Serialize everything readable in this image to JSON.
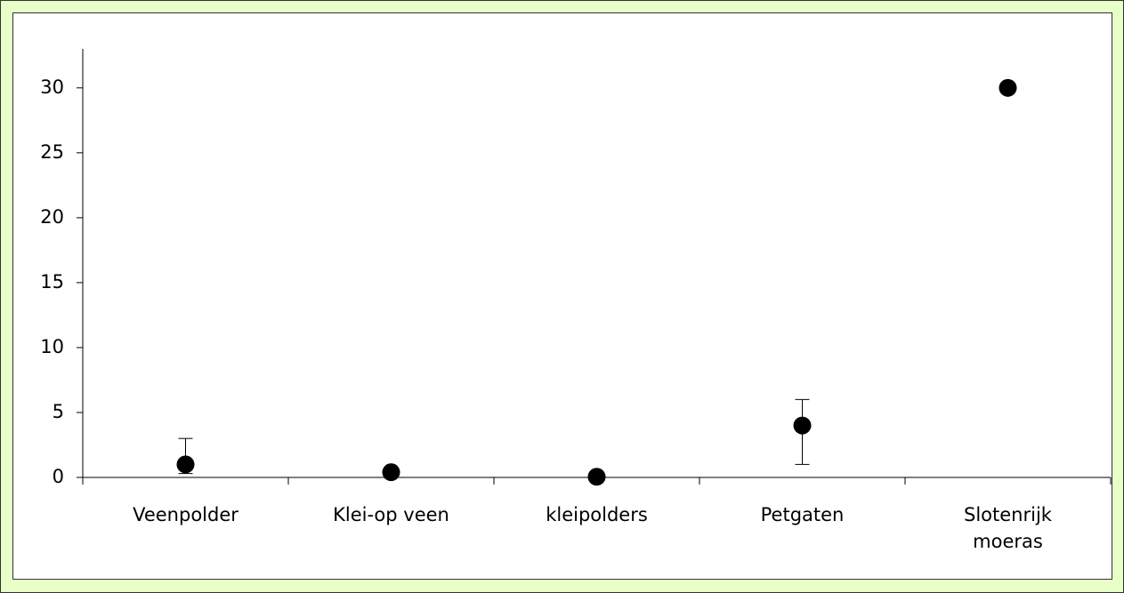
{
  "chart_data": {
    "type": "dot",
    "categories": [
      "Veenpolder",
      "Klei-op veen",
      "kleipolders",
      "Petgaten",
      "Slotenrijk\nmoeras"
    ],
    "values": [
      1,
      0.4,
      0.05,
      4,
      30
    ],
    "errors_plus": [
      2,
      null,
      null,
      2,
      null
    ],
    "errors_minus": [
      0.7,
      null,
      null,
      3,
      null
    ],
    "color": "#000000",
    "ylim": [
      0,
      33
    ],
    "yticks": [
      0,
      5,
      10,
      15,
      20,
      25,
      30
    ]
  }
}
